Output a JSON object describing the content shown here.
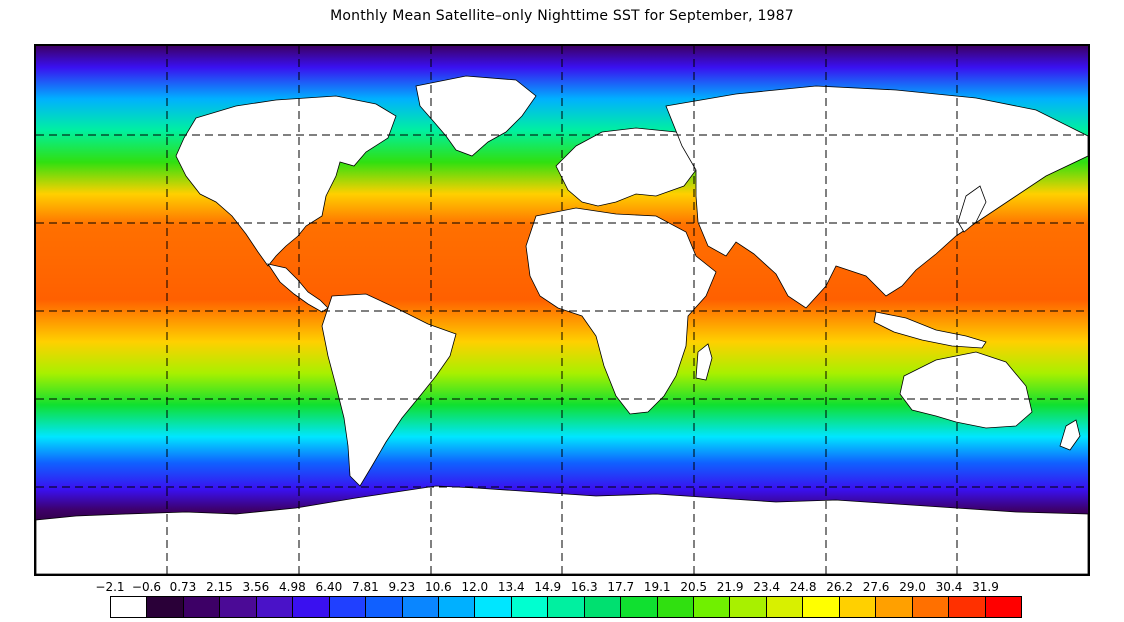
{
  "title": "Monthly Mean Satellite–only Nighttime SST for September, 1987",
  "map": {
    "projection": "equirectangular",
    "gridlines": "dashed",
    "land_color": "#ffffff",
    "coast_color": "#000000"
  },
  "colorbar": {
    "ticks": [
      "−2.1",
      "−0.6",
      "0.73",
      "2.15",
      "3.56",
      "4.98",
      "6.40",
      "7.81",
      "9.23",
      "10.6",
      "12.0",
      "13.4",
      "14.9",
      "16.3",
      "17.7",
      "19.1",
      "20.5",
      "21.9",
      "23.4",
      "24.8",
      "26.2",
      "27.6",
      "29.0",
      "30.4",
      "31.9"
    ],
    "colors": [
      "#ffffff",
      "#2a0038",
      "#3d0066",
      "#4b0a96",
      "#4a12c8",
      "#3a10f0",
      "#2040ff",
      "#1060ff",
      "#0a86ff",
      "#00b0ff",
      "#00e6ff",
      "#00ffd0",
      "#00f0a0",
      "#00e070",
      "#10e030",
      "#30e010",
      "#70f000",
      "#a8f000",
      "#d8f000",
      "#ffff00",
      "#ffd000",
      "#ffa000",
      "#ff7000",
      "#ff3000",
      "#ff0000"
    ]
  }
}
